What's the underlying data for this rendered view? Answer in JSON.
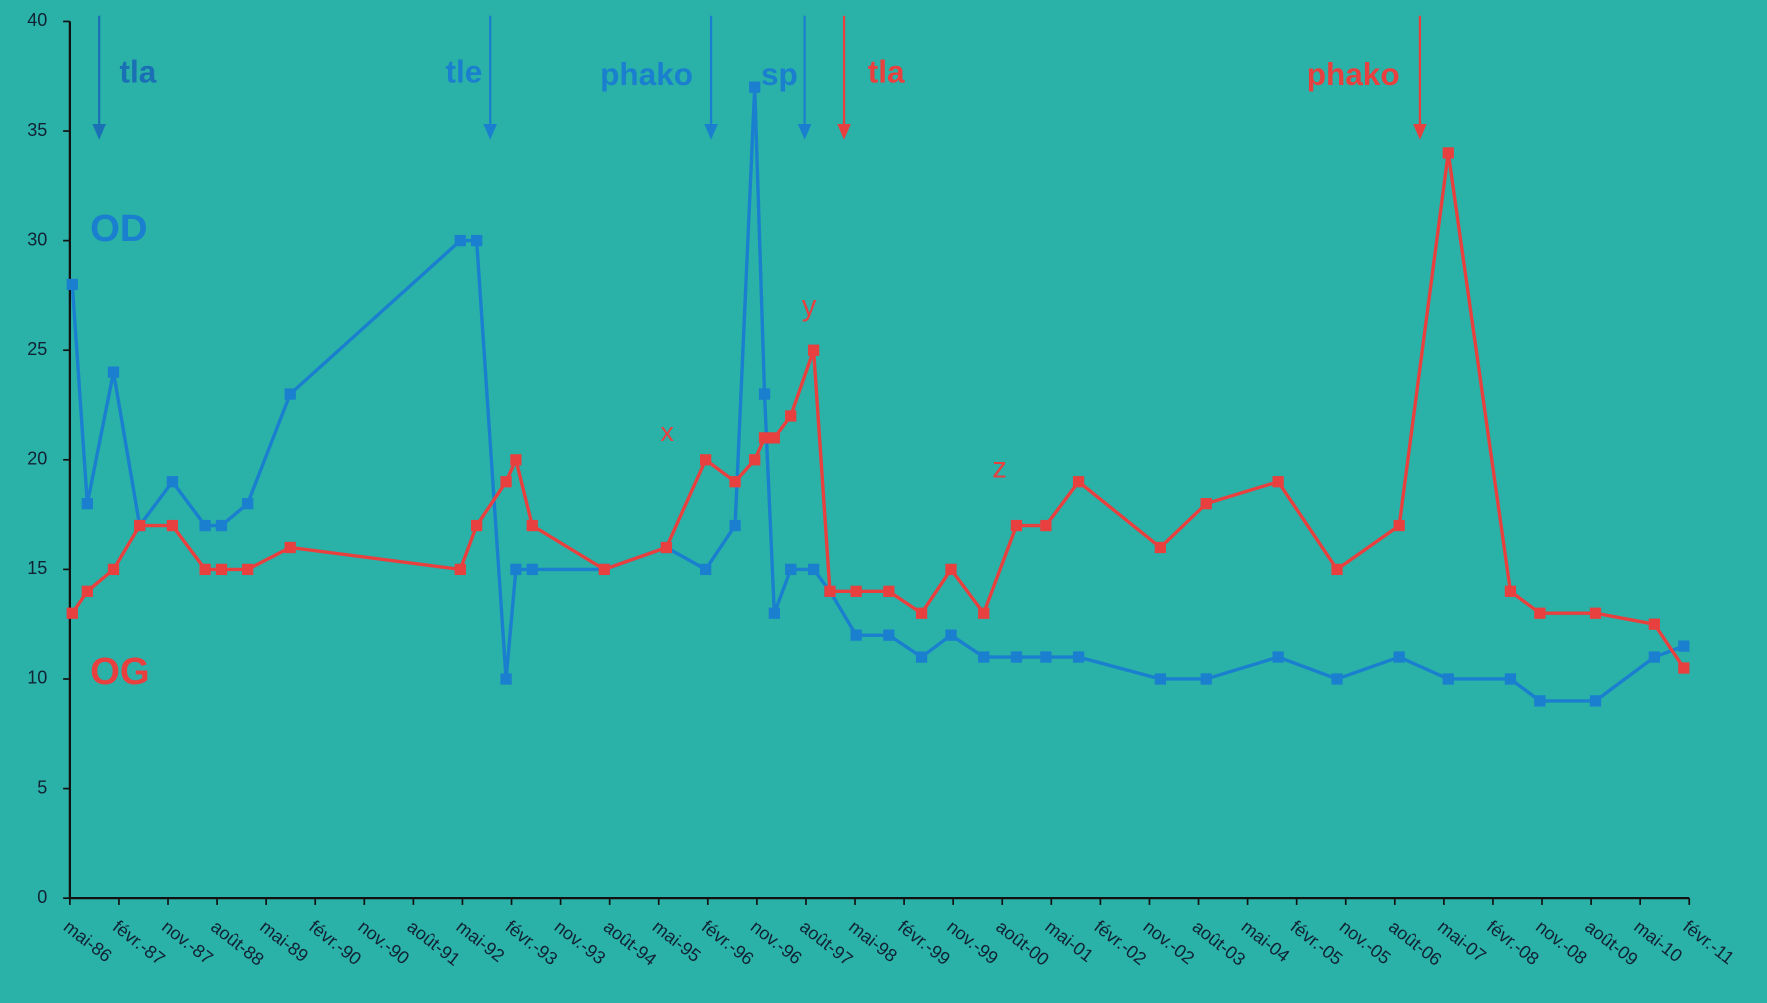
{
  "chart_data": {
    "type": "line",
    "x": [
      1986.37,
      1986.6,
      1987.0,
      1987.4,
      1987.9,
      1988.4,
      1988.65,
      1989.05,
      1989.7,
      1992.3,
      1992.55,
      1993.0,
      1993.15,
      1993.4,
      1994.5,
      1995.45,
      1996.05,
      1996.5,
      1996.8,
      1996.95,
      1997.1,
      1997.35,
      1997.7,
      1997.95,
      1998.35,
      1998.85,
      1999.35,
      1999.8,
      2000.3,
      2000.8,
      2001.25,
      2001.75,
      2003.0,
      2003.7,
      2004.8,
      2005.7,
      2006.65,
      2007.4,
      2008.35,
      2008.8,
      2009.65,
      2010.55,
      2011.0
    ],
    "series": [
      {
        "name": "OD",
        "color": "#1a7fcf",
        "values": [
          28,
          18,
          24,
          17,
          19,
          17,
          17,
          18,
          23,
          30,
          30,
          10,
          15,
          15,
          15,
          16,
          15,
          17,
          37,
          23,
          13,
          15,
          15,
          14,
          12,
          12,
          11,
          12,
          11,
          11,
          11,
          11,
          10,
          10,
          11,
          10,
          11,
          10,
          10,
          9,
          9,
          11,
          11.5
        ]
      },
      {
        "name": "OG",
        "color": "#e8403f",
        "values": [
          13,
          14,
          15,
          17,
          17,
          15,
          15,
          15,
          16,
          15,
          17,
          19,
          20,
          17,
          15,
          16,
          20,
          19,
          20,
          21,
          21,
          22,
          25,
          14,
          14,
          14,
          13,
          15,
          13,
          17,
          17,
          19,
          16,
          18,
          19,
          15,
          17,
          34,
          14,
          13,
          13,
          12.5,
          10.5
        ]
      }
    ],
    "xlim": [
      1986.333,
      2011.083
    ],
    "xticks": [
      {
        "value": 1986.333,
        "label": "mai-86"
      },
      {
        "value": 1987.083,
        "label": "févr.-87"
      },
      {
        "value": 1987.833,
        "label": "nov.-87"
      },
      {
        "value": 1988.583,
        "label": "août-88"
      },
      {
        "value": 1989.333,
        "label": "mai-89"
      },
      {
        "value": 1990.083,
        "label": "févr.-90"
      },
      {
        "value": 1990.833,
        "label": "nov.-90"
      },
      {
        "value": 1991.583,
        "label": "août-91"
      },
      {
        "value": 1992.333,
        "label": "mai-92"
      },
      {
        "value": 1993.083,
        "label": "févr.-93"
      },
      {
        "value": 1993.833,
        "label": "nov.-93"
      },
      {
        "value": 1994.583,
        "label": "août-94"
      },
      {
        "value": 1995.333,
        "label": "mai-95"
      },
      {
        "value": 1996.083,
        "label": "févr.-96"
      },
      {
        "value": 1996.833,
        "label": "nov.-96"
      },
      {
        "value": 1997.583,
        "label": "août-97"
      },
      {
        "value": 1998.333,
        "label": "mai-98"
      },
      {
        "value": 1999.083,
        "label": "févr.-99"
      },
      {
        "value": 1999.833,
        "label": "nov.-99"
      },
      {
        "value": 2000.583,
        "label": "août-00"
      },
      {
        "value": 2001.333,
        "label": "mai-01"
      },
      {
        "value": 2002.083,
        "label": "févr.-02"
      },
      {
        "value": 2002.833,
        "label": "nov.-02"
      },
      {
        "value": 2003.583,
        "label": "août-03"
      },
      {
        "value": 2004.333,
        "label": "mai-04"
      },
      {
        "value": 2005.083,
        "label": "févr.-05"
      },
      {
        "value": 2005.833,
        "label": "nov.-05"
      },
      {
        "value": 2006.583,
        "label": "août-06"
      },
      {
        "value": 2007.333,
        "label": "mai-07"
      },
      {
        "value": 2008.083,
        "label": "févr.-08"
      },
      {
        "value": 2008.833,
        "label": "nov.-08"
      },
      {
        "value": 2009.583,
        "label": "août-09"
      },
      {
        "value": 2010.333,
        "label": "mai-10"
      },
      {
        "value": 2011.083,
        "label": "févr.-11"
      }
    ],
    "ylim": [
      0,
      40
    ],
    "yticks": [
      0,
      5,
      10,
      15,
      20,
      25,
      30,
      35,
      40
    ],
    "grid": false,
    "annotations": [
      {
        "text": "tla",
        "color": "#1a6fb5"
      },
      {
        "text": "tle",
        "color": "#1a7fcf"
      },
      {
        "text": "phako",
        "color": "#1a7fcf"
      },
      {
        "text": "sp",
        "color": "#1a7fcf"
      },
      {
        "text": "tla",
        "color": "#e8403f"
      },
      {
        "text": "phako",
        "color": "#e8403f"
      },
      {
        "text": "OD",
        "color": "#1a7fcf"
      },
      {
        "text": "OG",
        "color": "#e8403f"
      },
      {
        "text": "x",
        "color": "#e8403f"
      },
      {
        "text": "y",
        "color": "#e8403f"
      },
      {
        "text": "z",
        "color": "#e8403f"
      }
    ]
  }
}
